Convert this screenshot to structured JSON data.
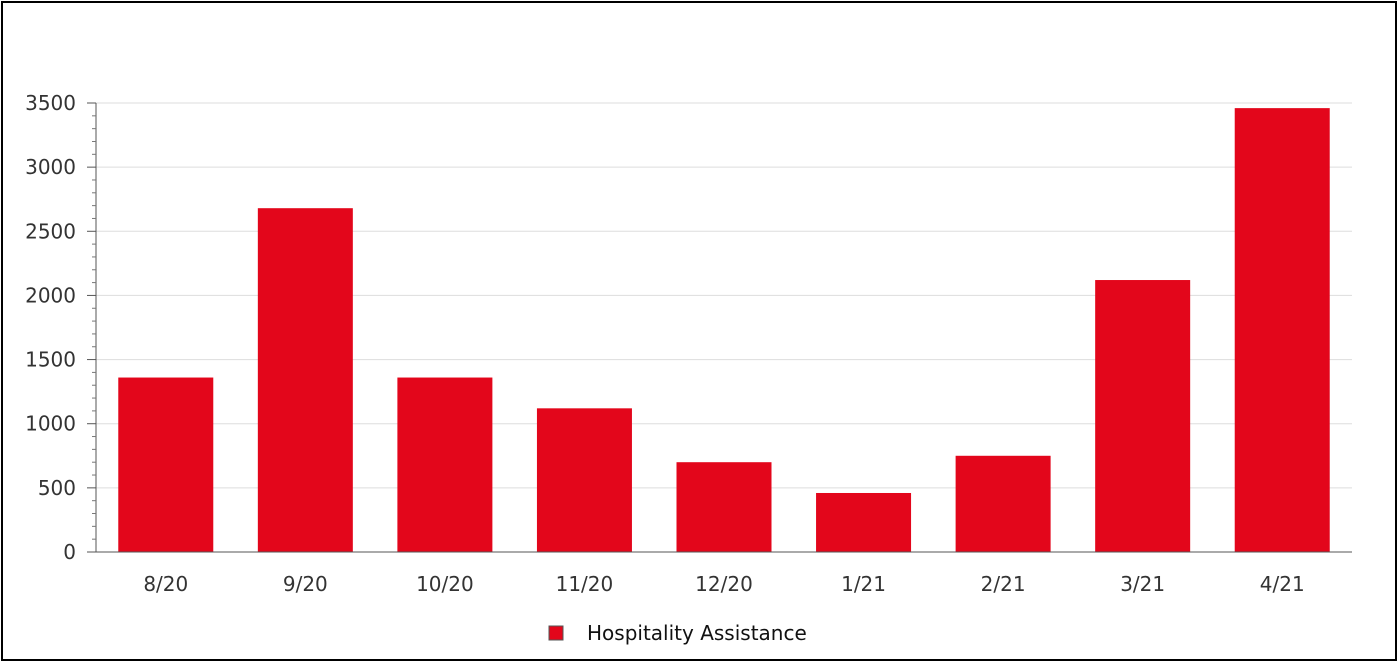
{
  "chart_data": {
    "type": "bar",
    "categories": [
      "8/20",
      "9/20",
      "10/20",
      "11/20",
      "12/20",
      "1/21",
      "2/21",
      "3/21",
      "4/21"
    ],
    "series": [
      {
        "name": "Hospitality Assistance",
        "color": "#e3061b",
        "values": [
          1360,
          2680,
          1360,
          1120,
          700,
          460,
          750,
          2120,
          3460
        ]
      }
    ],
    "title": "",
    "xlabel": "",
    "ylabel": "",
    "ylim": [
      0,
      3500
    ],
    "yticks": [
      "0",
      "500",
      "1000",
      "1500",
      "2000",
      "2500",
      "3000",
      "3500"
    ],
    "grid": true,
    "legend_position": "bottom-center"
  }
}
